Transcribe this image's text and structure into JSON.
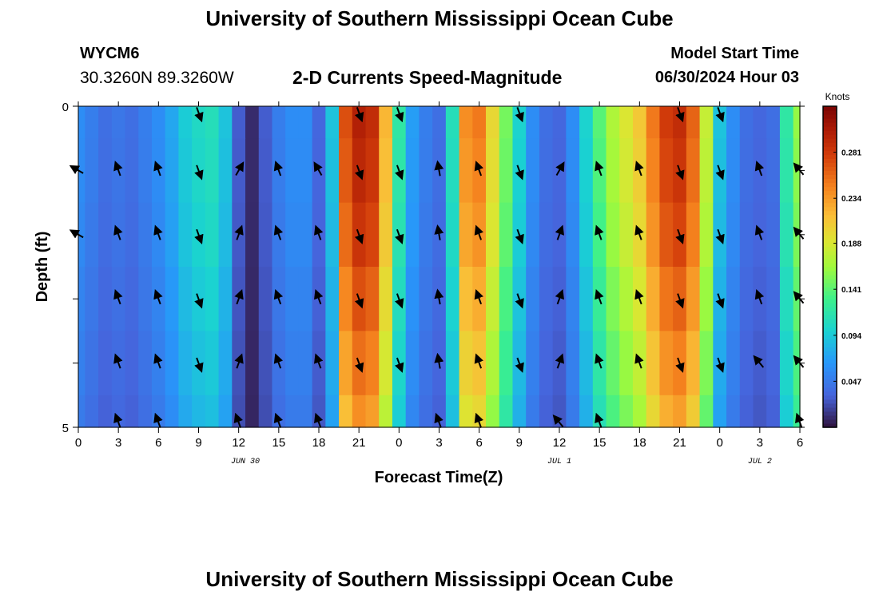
{
  "header": {
    "title": "University of Southern Mississippi Ocean Cube",
    "station": "WYCM6",
    "coordinates": "30.3260N  89.3260W",
    "subtitle": "2-D Currents Speed-Magnitude",
    "model_start_label": "Model Start Time",
    "model_start_value": "06/30/2024 Hour 03"
  },
  "footer": {
    "title": "University of Southern Mississippi Ocean Cube"
  },
  "chart_data": {
    "type": "heatmap",
    "title": "2-D Currents Speed-Magnitude",
    "xlabel": "Forecast Time(Z)",
    "ylabel": "Depth (ft)",
    "x_range_hours": [
      0,
      54
    ],
    "x_ticks": [
      {
        "hour": 0,
        "label": "0"
      },
      {
        "hour": 3,
        "label": "3"
      },
      {
        "hour": 6,
        "label": "6"
      },
      {
        "hour": 9,
        "label": "9"
      },
      {
        "hour": 12,
        "label": "12"
      },
      {
        "hour": 15,
        "label": "15"
      },
      {
        "hour": 18,
        "label": "18"
      },
      {
        "hour": 21,
        "label": "21"
      },
      {
        "hour": 24,
        "label": "0"
      },
      {
        "hour": 27,
        "label": "3"
      },
      {
        "hour": 30,
        "label": "6"
      },
      {
        "hour": 33,
        "label": "9"
      },
      {
        "hour": 36,
        "label": "12"
      },
      {
        "hour": 39,
        "label": "15"
      },
      {
        "hour": 42,
        "label": "18"
      },
      {
        "hour": 45,
        "label": "21"
      },
      {
        "hour": 48,
        "label": "0"
      },
      {
        "hour": 51,
        "label": "3"
      },
      {
        "hour": 54,
        "label": "6"
      }
    ],
    "date_labels": [
      {
        "hour": 12.5,
        "label": "JUN 30"
      },
      {
        "hour": 36,
        "label": "JUL 1"
      },
      {
        "hour": 51,
        "label": "JUL 2"
      }
    ],
    "y_range_ft": [
      0,
      5
    ],
    "y_tick_labels": [
      {
        "depth": 0,
        "label": "0"
      },
      {
        "depth": 5,
        "label": "5"
      }
    ],
    "depth_levels_ft": [
      0,
      1,
      2,
      3,
      4,
      5
    ],
    "colorbar": {
      "unit": "Knots",
      "min": 0.0,
      "max": 0.328,
      "ticks": [
        "0.047",
        "0.094",
        "0.141",
        "0.188",
        "0.234",
        "0.281"
      ]
    },
    "speed_knots_by_hour": [
      0.06,
      0.05,
      0.04,
      0.045,
      0.04,
      0.05,
      0.06,
      0.075,
      0.095,
      0.105,
      0.11,
      0.09,
      0.03,
      0.01,
      0.03,
      0.05,
      0.06,
      0.06,
      0.035,
      0.09,
      0.27,
      0.3,
      0.29,
      0.22,
      0.12,
      0.07,
      0.05,
      0.04,
      0.11,
      0.24,
      0.25,
      0.2,
      0.15,
      0.1,
      0.06,
      0.04,
      0.035,
      0.06,
      0.1,
      0.14,
      0.17,
      0.19,
      0.21,
      0.25,
      0.28,
      0.29,
      0.26,
      0.18,
      0.09,
      0.06,
      0.04,
      0.035,
      0.04,
      0.12,
      0.16
    ],
    "depth_speed_factor": [
      1.0,
      0.98,
      0.95,
      0.9,
      0.85,
      0.8
    ],
    "arrow_hours": [
      0,
      3,
      6,
      9,
      12,
      15,
      18,
      21,
      24,
      27,
      30,
      33,
      36,
      39,
      42,
      45,
      48,
      51,
      54
    ],
    "arrow_directions_deg": [
      [
        null,
        null,
        null,
        160,
        null,
        null,
        null,
        160,
        160,
        null,
        null,
        160,
        null,
        null,
        null,
        160,
        160,
        null,
        null
      ],
      [
        300,
        340,
        340,
        160,
        30,
        340,
        330,
        160,
        160,
        350,
        340,
        160,
        30,
        340,
        340,
        160,
        160,
        340,
        320
      ],
      [
        300,
        340,
        340,
        160,
        20,
        340,
        340,
        160,
        160,
        350,
        340,
        160,
        20,
        340,
        340,
        160,
        160,
        340,
        320
      ],
      [
        null,
        340,
        340,
        160,
        20,
        340,
        340,
        160,
        160,
        350,
        340,
        160,
        20,
        340,
        340,
        160,
        160,
        340,
        320
      ],
      [
        null,
        340,
        340,
        160,
        20,
        340,
        340,
        160,
        160,
        350,
        340,
        160,
        20,
        340,
        340,
        160,
        160,
        320,
        320
      ],
      [
        null,
        340,
        340,
        null,
        340,
        340,
        340,
        null,
        null,
        340,
        340,
        null,
        320,
        340,
        null,
        null,
        null,
        null,
        340
      ]
    ]
  }
}
